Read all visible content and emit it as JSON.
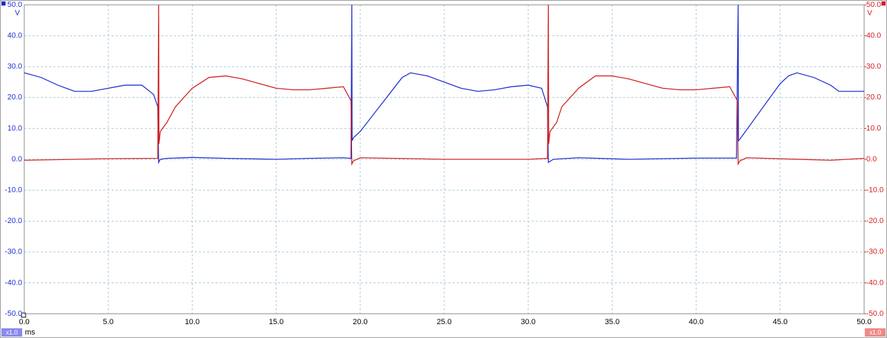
{
  "chart_data": {
    "type": "line",
    "xlim": [
      0,
      50
    ],
    "xticks": [
      {
        "value": 0,
        "label": "0.0"
      },
      {
        "value": 5,
        "label": "5.0"
      },
      {
        "value": 10,
        "label": "10.0"
      },
      {
        "value": 15,
        "label": "15.0"
      },
      {
        "value": 20,
        "label": "20.0"
      },
      {
        "value": 25,
        "label": "25.0"
      },
      {
        "value": 30,
        "label": "30.0"
      },
      {
        "value": 35,
        "label": "35.0"
      },
      {
        "value": 40,
        "label": "40.0"
      },
      {
        "value": 45,
        "label": "45.0"
      },
      {
        "value": 50,
        "label": "50.0"
      }
    ],
    "ylim": [
      -50,
      50
    ],
    "yticks": [
      {
        "value": 50,
        "label": "50.0"
      },
      {
        "value": 40,
        "label": "40.0"
      },
      {
        "value": 30,
        "label": "30.0"
      },
      {
        "value": 20,
        "label": "20.0"
      },
      {
        "value": 10,
        "label": "10.0"
      },
      {
        "value": 0,
        "label": "0.0"
      },
      {
        "value": -10,
        "label": "-10.0"
      },
      {
        "value": -20,
        "label": "-20.0"
      },
      {
        "value": -30,
        "label": "-30.0"
      },
      {
        "value": -40,
        "label": "-40.0"
      },
      {
        "value": -50,
        "label": "-50.0"
      }
    ],
    "y2lim": [
      -50,
      50
    ],
    "y2ticks": [
      {
        "value": 50,
        "label": "50.0"
      },
      {
        "value": 40,
        "label": "40.0"
      },
      {
        "value": 30,
        "label": "30.0"
      },
      {
        "value": 20,
        "label": "20.0"
      },
      {
        "value": 10,
        "label": "10.0"
      },
      {
        "value": 0,
        "label": "0.0"
      },
      {
        "value": -10,
        "label": "-10.0"
      },
      {
        "value": -20,
        "label": "-20.0"
      },
      {
        "value": -30,
        "label": "-30.0"
      },
      {
        "value": -40,
        "label": "-40.0"
      },
      {
        "value": -50,
        "label": "-50.0"
      }
    ],
    "y_unit": "V",
    "y2_unit": "V",
    "x_unit": "ms",
    "y_scale": "x1.0",
    "y2_scale": "x1.0",
    "y_color": "#1f2fd0",
    "y2_color": "#d02020",
    "grid": true,
    "series": [
      {
        "color": "#1f2fd0",
        "axis": "y",
        "x": [
          0,
          1,
          2,
          3,
          4,
          5,
          6,
          7,
          7.7,
          7.95,
          8.0,
          8.1,
          8.5,
          10,
          12,
          15,
          17,
          19,
          19.45,
          19.5,
          19.52,
          19.6,
          20,
          21,
          22,
          22.5,
          23,
          24,
          25,
          26,
          27,
          28,
          29,
          30,
          30.8,
          31.15,
          31.2,
          31.5,
          33,
          36,
          40,
          42.4,
          42.5,
          42.52,
          42.6,
          43,
          44,
          45,
          45.5,
          46,
          47,
          48,
          48.5,
          50
        ],
        "values": [
          28,
          26.5,
          24,
          22,
          22,
          23,
          24,
          24,
          21,
          17,
          -1,
          0,
          0.3,
          0.6,
          0.3,
          0,
          0.3,
          0.5,
          0.3,
          50,
          6,
          7,
          9,
          16,
          23,
          26.5,
          28,
          27,
          25,
          23,
          22,
          22.5,
          23.5,
          24,
          23,
          17,
          -1,
          0,
          0.5,
          0,
          0.4,
          0.4,
          50,
          6,
          6.5,
          9.5,
          17,
          24.5,
          27,
          28,
          26.5,
          24,
          22,
          22
        ]
      },
      {
        "color": "#d02020",
        "axis": "y2",
        "x": [
          0,
          5,
          7.95,
          8.0,
          8.02,
          8.1,
          8.5,
          9,
          10,
          11,
          12,
          13,
          14,
          15,
          16,
          17,
          18,
          19,
          19.45,
          19.5,
          19.6,
          20,
          25,
          30,
          31.15,
          31.2,
          31.22,
          31.3,
          31.7,
          32,
          33,
          34,
          35,
          36,
          37,
          38,
          39,
          40,
          41,
          42,
          42.45,
          42.5,
          42.6,
          43,
          48,
          50
        ],
        "values": [
          -0.3,
          0.2,
          0.3,
          50,
          5,
          9,
          12,
          17,
          23,
          26.5,
          27,
          26,
          24.5,
          23,
          22.5,
          22.5,
          23,
          23.5,
          19,
          -1.5,
          -0.5,
          0.5,
          0,
          0,
          0.3,
          50,
          5,
          9,
          12,
          17,
          23,
          27,
          27,
          26,
          24.5,
          23,
          22.5,
          22.5,
          23,
          23.5,
          19,
          -1.5,
          -0.5,
          0.5,
          -0.3,
          0.3
        ]
      }
    ]
  }
}
